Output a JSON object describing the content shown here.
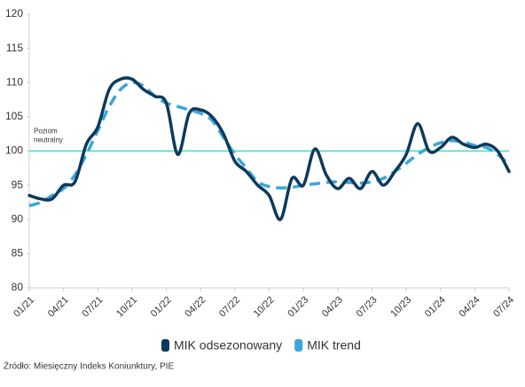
{
  "chart_data": {
    "type": "line",
    "categories": [
      "01/21",
      null,
      null,
      "04/21",
      null,
      null,
      "07/21",
      null,
      null,
      "10/21",
      null,
      null,
      "01/22",
      null,
      null,
      "04/22",
      null,
      null,
      "07/22",
      null,
      null,
      "10/22",
      null,
      null,
      "01/23",
      null,
      null,
      "04/23",
      null,
      null,
      "07/23",
      null,
      null,
      "10/23",
      null,
      null,
      "01/24",
      null,
      null,
      "04/24",
      null,
      null,
      "07/24"
    ],
    "series": [
      {
        "name": "MIK odsezonowany",
        "color": "#0d3a5c",
        "dashed": false,
        "values": [
          93.5,
          93,
          93,
          95,
          95.5,
          101,
          103.5,
          109,
          110.5,
          110.5,
          109,
          108,
          107,
          99.5,
          105.5,
          106,
          105,
          102.5,
          98.5,
          97,
          95,
          93.5,
          90,
          96,
          95,
          100.3,
          96.5,
          94.5,
          96,
          94.5,
          97,
          95,
          97,
          99.5,
          104,
          100,
          100.5,
          102,
          101,
          100.5,
          101,
          100,
          97
        ]
      },
      {
        "name": "MIK trend",
        "color": "#3aa6dc",
        "dashed": true,
        "values": [
          92,
          92.5,
          93.5,
          94.5,
          96.5,
          99.5,
          103,
          106.5,
          109,
          110,
          109.5,
          108,
          107,
          106.5,
          106,
          105.5,
          104.5,
          102,
          99.5,
          97.5,
          95.5,
          94.8,
          94.6,
          94.7,
          95,
          95.2,
          95.4,
          95.5,
          95.4,
          95.3,
          95.5,
          96,
          97,
          98.2,
          99.5,
          100.5,
          101.2,
          101.5,
          101.3,
          100.8,
          100.5,
          99.5,
          98
        ]
      }
    ],
    "ylim": [
      80,
      120
    ],
    "yticks": [
      80,
      85,
      90,
      95,
      100,
      105,
      110,
      115,
      120
    ],
    "reference_line": {
      "value": 100,
      "color": "#3ee0bf",
      "label": [
        "Poziom",
        "neutralny"
      ]
    },
    "legend": "bottom",
    "source": "Źródło: Miesięczny Indeks Koniunktury, PIE"
  }
}
